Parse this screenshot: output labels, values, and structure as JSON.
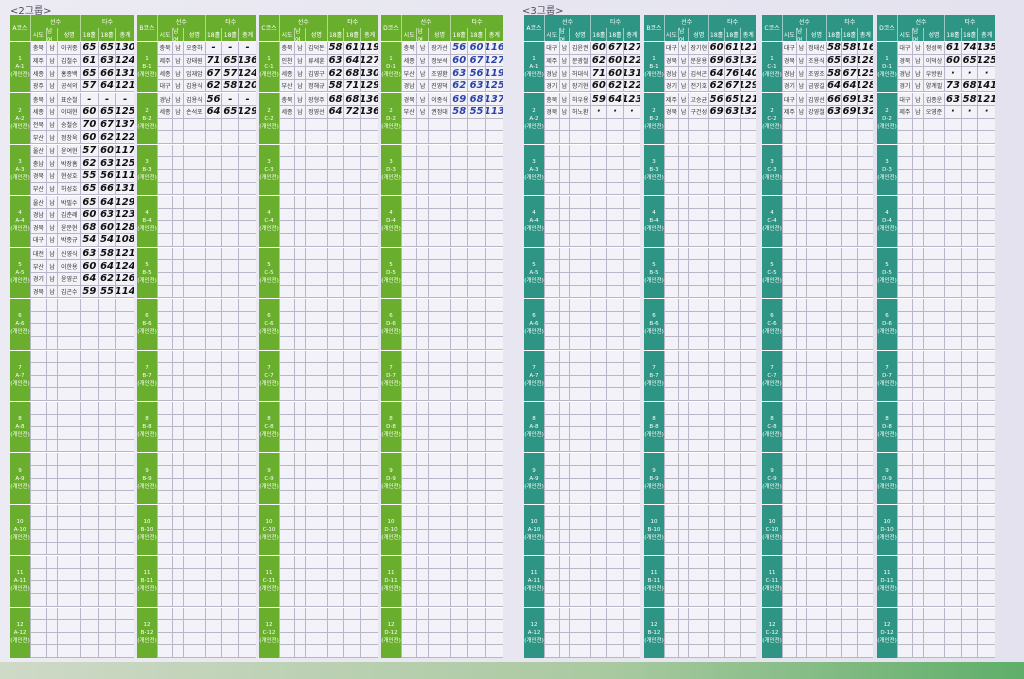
{
  "titles": {
    "group2": "<2그룹>",
    "group3": "<3그룹>"
  },
  "headers": {
    "player": "선수",
    "score": "타수",
    "sido": "시도",
    "sex": "남여",
    "name": "성명",
    "h1": "18홀",
    "h2": "18홀",
    "total": "총계",
    "course_suffix": "코스",
    "event": "(개인전)"
  },
  "colors": {
    "group2": "#6aae2e",
    "group3": "#2e9584"
  },
  "sheets": [
    {
      "section": "group2",
      "course": "A",
      "groups": [
        [
          [
            "충북",
            "남",
            "이귀종",
            "65",
            "65",
            "130"
          ],
          [
            "제주",
            "남",
            "김철수",
            "61",
            "63",
            "124"
          ],
          [
            "세종",
            "남",
            "홍종백",
            "65",
            "66",
            "131"
          ],
          [
            "광주",
            "남",
            "공석의",
            "57",
            "64",
            "121"
          ]
        ],
        [
          [
            "충북",
            "남",
            "표순철",
            "-",
            "-",
            "-"
          ],
          [
            "세종",
            "남",
            "이대현",
            "60",
            "65",
            "125"
          ],
          [
            "전북",
            "남",
            "송철승",
            "70",
            "67",
            "137"
          ],
          [
            "부산",
            "남",
            "정창욱",
            "60",
            "62",
            "122"
          ]
        ],
        [
          [
            "울산",
            "남",
            "윤여현",
            "57",
            "60",
            "117"
          ],
          [
            "충남",
            "남",
            "박장흠",
            "62",
            "63",
            "125"
          ],
          [
            "경북",
            "남",
            "현성호",
            "55",
            "56",
            "111"
          ],
          [
            "부산",
            "남",
            "허성호",
            "65",
            "66",
            "131"
          ]
        ],
        [
          [
            "울산",
            "남",
            "박필수",
            "65",
            "64",
            "129"
          ],
          [
            "경남",
            "남",
            "김춘례",
            "60",
            "63",
            "123"
          ],
          [
            "경북",
            "남",
            "윤문현",
            "68",
            "60",
            "128"
          ],
          [
            "대구",
            "남",
            "박종규",
            "54",
            "54",
            "108"
          ]
        ],
        [
          [
            "대전",
            "남",
            "신영식",
            "63",
            "58",
            "121"
          ],
          [
            "부산",
            "남",
            "이한용",
            "60",
            "64",
            "124"
          ],
          [
            "경기",
            "남",
            "윤영곤",
            "64",
            "62",
            "126"
          ],
          [
            "경북",
            "남",
            "김곤수",
            "59",
            "55",
            "114"
          ]
        ]
      ]
    },
    {
      "section": "group2",
      "course": "B",
      "groups": [
        [
          [
            "충북",
            "남",
            "오종하",
            "-",
            "-",
            "-"
          ],
          [
            "제주",
            "남",
            "강태원",
            "71",
            "65",
            "136"
          ],
          [
            "세종",
            "남",
            "임재암",
            "67",
            "57",
            "124"
          ],
          [
            "대구",
            "남",
            "김용식",
            "62",
            "58",
            "120"
          ]
        ],
        [
          [
            "경남",
            "남",
            "김용식",
            "56",
            "-",
            "-"
          ],
          [
            "세종",
            "남",
            "손석포",
            "64",
            "65",
            "129"
          ]
        ]
      ]
    },
    {
      "section": "group2",
      "course": "C",
      "groups": [
        [
          [
            "충북",
            "남",
            "김덕돈",
            "58",
            "61",
            "119"
          ],
          [
            "인천",
            "남",
            "류세훈",
            "63",
            "64",
            "127"
          ],
          [
            "세종",
            "남",
            "김영구",
            "62",
            "68",
            "130"
          ],
          [
            "부산",
            "남",
            "정해규",
            "58",
            "71",
            "129"
          ]
        ],
        [
          [
            "충북",
            "남",
            "장형주",
            "68",
            "68",
            "136"
          ],
          [
            "세종",
            "남",
            "정영선",
            "64",
            "72",
            "136"
          ]
        ]
      ]
    },
    {
      "section": "group2",
      "course": "D",
      "blue": true,
      "groups": [
        [
          [
            "충북",
            "남",
            "장가선",
            "56",
            "60",
            "116"
          ],
          [
            "세종",
            "남",
            "정보석",
            "60",
            "67",
            "127"
          ],
          [
            "부산",
            "남",
            "조영환",
            "63",
            "56",
            "119"
          ],
          [
            "경남",
            "남",
            "진영덕",
            "62",
            "63",
            "125"
          ]
        ],
        [
          [
            "경북",
            "남",
            "이종식",
            "69",
            "68",
            "137"
          ],
          [
            "부산",
            "남",
            "권정대",
            "58",
            "55",
            "113"
          ]
        ]
      ]
    },
    {
      "section": "group3",
      "course": "A",
      "groups": [
        [
          [
            "대구",
            "남",
            "김윤권",
            "60",
            "67",
            "127"
          ],
          [
            "제주",
            "남",
            "문광철",
            "62",
            "60",
            "122"
          ],
          [
            "경남",
            "남",
            "허대식",
            "71",
            "60",
            "131"
          ],
          [
            "경기",
            "남",
            "장기현",
            "60",
            "62",
            "122"
          ]
        ],
        [
          [
            "충북",
            "남",
            "허우용",
            "59",
            "64",
            "123"
          ],
          [
            "경북",
            "남",
            "허노환",
            "·",
            "·",
            "·"
          ]
        ]
      ]
    },
    {
      "section": "group3",
      "course": "B",
      "groups": [
        [
          [
            "대구",
            "남",
            "장기현",
            "60",
            "61",
            "121"
          ],
          [
            "경북",
            "남",
            "문윤용",
            "69",
            "63",
            "132"
          ],
          [
            "경남",
            "남",
            "김석곤",
            "64",
            "76",
            "140"
          ],
          [
            "경기",
            "남",
            "전기호",
            "62",
            "67",
            "129"
          ]
        ],
        [
          [
            "제주",
            "남",
            "고승균",
            "56",
            "65",
            "121"
          ],
          [
            "경북",
            "남",
            "구건성",
            "69",
            "63",
            "132"
          ]
        ]
      ]
    },
    {
      "section": "group3",
      "course": "C",
      "groups": [
        [
          [
            "대구",
            "남",
            "정태신",
            "58",
            "58",
            "116"
          ],
          [
            "경북",
            "남",
            "조용식",
            "65",
            "63",
            "128"
          ],
          [
            "경남",
            "남",
            "조영조",
            "58",
            "67",
            "125"
          ],
          [
            "경기",
            "남",
            "금영길",
            "64",
            "64",
            "128"
          ]
        ],
        [
          [
            "대구",
            "남",
            "김영선",
            "66",
            "69",
            "135"
          ],
          [
            "제주",
            "남",
            "강영철",
            "63",
            "69",
            "132"
          ]
        ]
      ]
    },
    {
      "section": "group3",
      "course": "D",
      "groups": [
        [
          [
            "대구",
            "남",
            "정성목",
            "61",
            "74",
            "135"
          ],
          [
            "경북",
            "남",
            "이덕상",
            "60",
            "65",
            "125"
          ],
          [
            "경남",
            "남",
            "우방원",
            "·",
            "·",
            "·"
          ],
          [
            "경기",
            "남",
            "양계필",
            "73",
            "68",
            "141"
          ]
        ],
        [
          [
            "대구",
            "남",
            "김종운",
            "63",
            "58",
            "121"
          ],
          [
            "제주",
            "남",
            "오영준",
            "·",
            "·",
            "·"
          ]
        ]
      ]
    }
  ]
}
